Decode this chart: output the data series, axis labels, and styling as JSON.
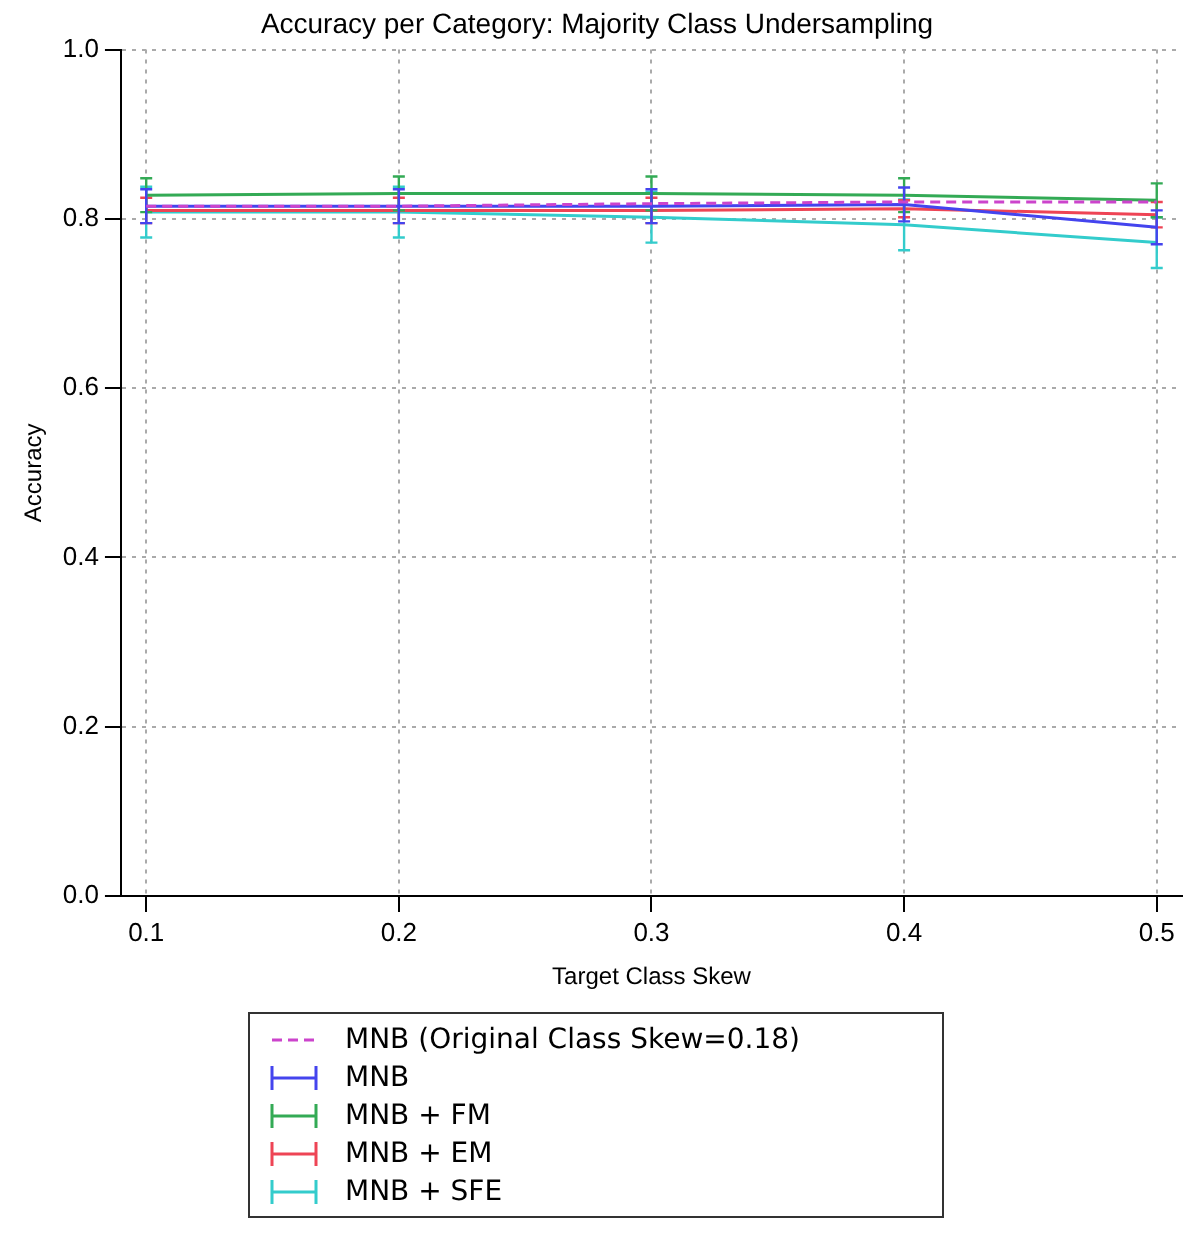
{
  "chart_data": {
    "type": "line",
    "title": "Accuracy per Category: Majority Class Undersampling",
    "xlabel": "Target Class Skew",
    "ylabel": "Accuracy",
    "x": [
      0.1,
      0.2,
      0.3,
      0.4,
      0.5
    ],
    "series": [
      {
        "name": "MNB (Original Class Skew=0.18)",
        "color": "#cc44cc",
        "line_style": "dashed",
        "values": [
          0.815,
          0.815,
          0.818,
          0.82,
          0.82
        ]
      },
      {
        "name": "MNB",
        "color": "#4444ee",
        "values": [
          0.815,
          0.815,
          0.815,
          0.817,
          0.79
        ],
        "errors": [
          0.02,
          0.02,
          0.02,
          0.02,
          0.02
        ]
      },
      {
        "name": "MNB + FM",
        "color": "#33aa55",
        "values": [
          0.828,
          0.83,
          0.83,
          0.828,
          0.822
        ],
        "errors": [
          0.02,
          0.02,
          0.02,
          0.02,
          0.02
        ]
      },
      {
        "name": "MNB + EM",
        "color": "#ee4455",
        "values": [
          0.81,
          0.81,
          0.81,
          0.812,
          0.805
        ],
        "errors": [
          0.015,
          0.015,
          0.015,
          0.01,
          0.015
        ]
      },
      {
        "name": "MNB + SFE",
        "color": "#33cccc",
        "values": [
          0.808,
          0.808,
          0.802,
          0.793,
          0.772
        ],
        "errors": [
          0.03,
          0.03,
          0.03,
          0.03,
          0.03
        ]
      }
    ],
    "xlim": [
      0.09,
      0.51
    ],
    "xticks": [
      0.1,
      0.2,
      0.3,
      0.4,
      0.5
    ],
    "ylim": [
      0,
      1
    ],
    "yticks": [
      {
        "value": 0,
        "label": "0.0"
      },
      0.2,
      0.4,
      0.6,
      0.8,
      {
        "value": 1,
        "label": "1.0"
      }
    ],
    "grid": true,
    "legend": "bottom",
    "marker": "none",
    "line_style": "solid"
  }
}
